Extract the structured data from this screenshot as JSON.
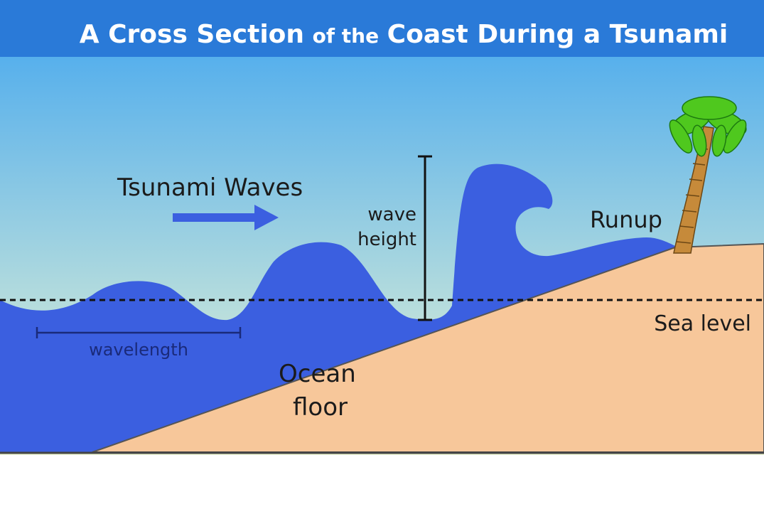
{
  "title": {
    "part1": "A Cross Section",
    "part2": "of the",
    "part3": "Coast During a Tsunami"
  },
  "labels": {
    "tsunami_waves": "Tsunami Waves",
    "wave_height_line1": "wave",
    "wave_height_line2": "height",
    "runup": "Runup",
    "sea_level": "Sea level",
    "wavelength": "wavelength",
    "ocean_floor_line1": "Ocean",
    "ocean_floor_line2": "floor"
  },
  "colors": {
    "title_band": "#2a7ad8",
    "sky_top": "#57b0ec",
    "sky_bottom": "#eef7d4",
    "water": "#3b5fe0",
    "land": "#f7c79a",
    "land_edge": "#555555",
    "trunk": "#c68a3a",
    "leaves": "#4fc81e",
    "label_text": "#1b1b1b",
    "water_label_text": "#1a2a7a"
  }
}
